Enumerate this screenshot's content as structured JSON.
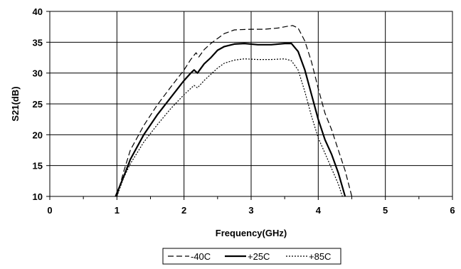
{
  "chart_data": {
    "type": "line",
    "title": "",
    "xlabel": "Frequency(GHz)",
    "ylabel": "S21(dB)",
    "xlim": [
      0,
      6
    ],
    "ylim": [
      10,
      40
    ],
    "x_ticks": [
      "0",
      "1",
      "2",
      "3",
      "4",
      "5",
      "6"
    ],
    "y_ticks": [
      "10",
      "15",
      "20",
      "25",
      "30",
      "35",
      "40"
    ],
    "grid": true,
    "legend_position": "bottom",
    "series": [
      {
        "name": "-40C",
        "line_style": "dashed",
        "color": "#000000",
        "points": [
          [
            1.0,
            10.0
          ],
          [
            1.1,
            14.0
          ],
          [
            1.2,
            17.5
          ],
          [
            1.4,
            21.5
          ],
          [
            1.6,
            24.8
          ],
          [
            1.8,
            27.7
          ],
          [
            2.0,
            30.5
          ],
          [
            2.1,
            32.2
          ],
          [
            2.18,
            33.3
          ],
          [
            2.22,
            32.6
          ],
          [
            2.3,
            33.8
          ],
          [
            2.4,
            34.8
          ],
          [
            2.5,
            35.6
          ],
          [
            2.6,
            36.4
          ],
          [
            2.75,
            37.0
          ],
          [
            3.0,
            37.1
          ],
          [
            3.2,
            37.1
          ],
          [
            3.4,
            37.3
          ],
          [
            3.55,
            37.6
          ],
          [
            3.62,
            37.7
          ],
          [
            3.7,
            37.3
          ],
          [
            3.8,
            35.2
          ],
          [
            3.9,
            31.8
          ],
          [
            4.0,
            27.5
          ],
          [
            4.1,
            23.5
          ],
          [
            4.2,
            20.8
          ],
          [
            4.3,
            17.5
          ],
          [
            4.4,
            14.2
          ],
          [
            4.5,
            10.0
          ]
        ]
      },
      {
        "name": "+25C",
        "line_style": "solid",
        "color": "#000000",
        "points": [
          [
            0.98,
            10.0
          ],
          [
            1.1,
            13.2
          ],
          [
            1.2,
            16.0
          ],
          [
            1.4,
            20.0
          ],
          [
            1.6,
            23.2
          ],
          [
            1.8,
            26.0
          ],
          [
            2.0,
            28.8
          ],
          [
            2.1,
            30.0
          ],
          [
            2.15,
            30.5
          ],
          [
            2.2,
            30.0
          ],
          [
            2.3,
            31.5
          ],
          [
            2.4,
            32.5
          ],
          [
            2.5,
            33.7
          ],
          [
            2.6,
            34.3
          ],
          [
            2.75,
            34.7
          ],
          [
            2.9,
            34.8
          ],
          [
            3.1,
            34.6
          ],
          [
            3.3,
            34.6
          ],
          [
            3.5,
            34.8
          ],
          [
            3.6,
            34.8
          ],
          [
            3.7,
            33.5
          ],
          [
            3.8,
            30.5
          ],
          [
            3.9,
            26.5
          ],
          [
            4.0,
            22.5
          ],
          [
            4.1,
            19.2
          ],
          [
            4.2,
            16.8
          ],
          [
            4.3,
            13.8
          ],
          [
            4.4,
            10.0
          ]
        ]
      },
      {
        "name": "+85C",
        "line_style": "dotted",
        "color": "#000000",
        "points": [
          [
            1.0,
            10.0
          ],
          [
            1.1,
            13.0
          ],
          [
            1.2,
            15.3
          ],
          [
            1.4,
            18.8
          ],
          [
            1.6,
            21.6
          ],
          [
            1.8,
            24.2
          ],
          [
            2.0,
            26.5
          ],
          [
            2.1,
            27.5
          ],
          [
            2.15,
            28.0
          ],
          [
            2.2,
            27.6
          ],
          [
            2.3,
            28.8
          ],
          [
            2.4,
            29.8
          ],
          [
            2.5,
            30.8
          ],
          [
            2.6,
            31.6
          ],
          [
            2.75,
            32.1
          ],
          [
            2.9,
            32.3
          ],
          [
            3.1,
            32.2
          ],
          [
            3.3,
            32.2
          ],
          [
            3.5,
            32.3
          ],
          [
            3.6,
            32.0
          ],
          [
            3.7,
            30.5
          ],
          [
            3.8,
            27.0
          ],
          [
            3.9,
            23.0
          ],
          [
            4.0,
            19.5
          ],
          [
            4.1,
            17.0
          ],
          [
            4.2,
            14.5
          ],
          [
            4.3,
            12.0
          ],
          [
            4.36,
            10.0
          ]
        ]
      }
    ]
  }
}
